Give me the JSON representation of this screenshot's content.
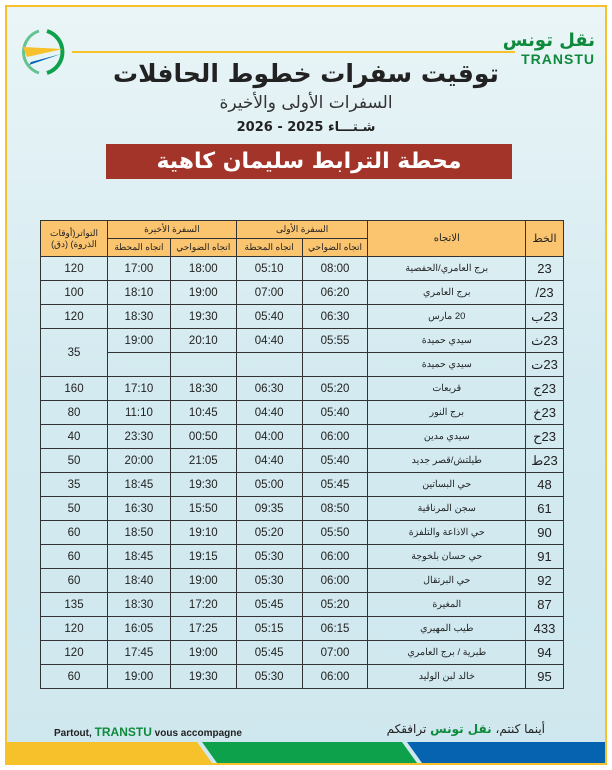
{
  "brand": {
    "arabic": "نقل تونس",
    "latin": "TRANSTU"
  },
  "header": {
    "title": "توقيت سفرات خطوط الحافلات",
    "subtitle": "السفرات الأولى والأخيرة",
    "season": "شـتـــاء 2025 - 2026",
    "station": "محطة الترابط سليمان كاهية"
  },
  "table": {
    "headers": {
      "line": "الخط",
      "direction": "الاتجاه",
      "first_trip": "السفرة الأولى",
      "last_trip": "السفرة الأخيرة",
      "frequency": "التواتر(أوقات الذروة) (دق)",
      "to_suburbs": "اتجاه الضواحي",
      "to_station": "اتجاه المحطة"
    },
    "rows": [
      {
        "line": "23",
        "direction": "برج العامري/الحفصية",
        "first_suburbs": "08:00",
        "first_station": "05:10",
        "last_suburbs": "18:00",
        "last_station": "17:00",
        "freq": "120"
      },
      {
        "line": "23/",
        "direction": "برج العامري",
        "first_suburbs": "06:20",
        "first_station": "07:00",
        "last_suburbs": "19:00",
        "last_station": "18:10",
        "freq": "100"
      },
      {
        "line": "23ب",
        "direction": "20 مارس",
        "first_suburbs": "06:30",
        "first_station": "05:40",
        "last_suburbs": "19:30",
        "last_station": "18:30",
        "freq": "120"
      },
      {
        "line": "23ث",
        "direction": "سيدي حميدة",
        "first_suburbs": "05:55",
        "first_station": "04:40",
        "last_suburbs": "20:10",
        "last_station": "19:00",
        "freq": "35"
      },
      {
        "line": "23ت",
        "direction": "سيدي حميدة",
        "first_suburbs": "",
        "first_station": "",
        "last_suburbs": "",
        "last_station": "",
        "freq": ""
      },
      {
        "line": "23ج",
        "direction": "قربعات",
        "first_suburbs": "05:20",
        "first_station": "06:30",
        "last_suburbs": "18:30",
        "last_station": "17:10",
        "freq": "160"
      },
      {
        "line": "23خ",
        "direction": "برج النور",
        "first_suburbs": "05:40",
        "first_station": "04:40",
        "last_suburbs": "10:45",
        "last_station": "11:10",
        "freq": "80"
      },
      {
        "line": "23ح",
        "direction": "سيدي مدين",
        "first_suburbs": "06:00",
        "first_station": "04:00",
        "last_suburbs": "00:50",
        "last_station": "23:30",
        "freq": "40"
      },
      {
        "line": "23ط",
        "direction": "طيلتش/قصر جديد",
        "first_suburbs": "05:40",
        "first_station": "04:40",
        "last_suburbs": "21:05",
        "last_station": "20:00",
        "freq": "50"
      },
      {
        "line": "48",
        "direction": "حي البساتين",
        "first_suburbs": "05:45",
        "first_station": "05:00",
        "last_suburbs": "19:30",
        "last_station": "18:45",
        "freq": "35"
      },
      {
        "line": "61",
        "direction": "سجن المرناقية",
        "first_suburbs": "08:50",
        "first_station": "09:35",
        "last_suburbs": "15:50",
        "last_station": "16:30",
        "freq": "50"
      },
      {
        "line": "90",
        "direction": "حي الاذاعة والتلفزة",
        "first_suburbs": "05:50",
        "first_station": "05:20",
        "last_suburbs": "19:10",
        "last_station": "18:50",
        "freq": "60"
      },
      {
        "line": "91",
        "direction": "حي حسان بلخوجة",
        "first_suburbs": "06:00",
        "first_station": "05:30",
        "last_suburbs": "19:15",
        "last_station": "18:45",
        "freq": "60"
      },
      {
        "line": "92",
        "direction": "حي البرتقال",
        "first_suburbs": "06:00",
        "first_station": "05:30",
        "last_suburbs": "19:00",
        "last_station": "18:40",
        "freq": "60"
      },
      {
        "line": "87",
        "direction": "المغيرة",
        "first_suburbs": "05:20",
        "first_station": "05:45",
        "last_suburbs": "17:20",
        "last_station": "18:30",
        "freq": "135"
      },
      {
        "line": "433",
        "direction": "طيب المهيري",
        "first_suburbs": "06:15",
        "first_station": "05:15",
        "last_suburbs": "17:25",
        "last_station": "16:05",
        "freq": "120"
      },
      {
        "line": "94",
        "direction": "طبرية / برج العامري",
        "first_suburbs": "07:00",
        "first_station": "05:45",
        "last_suburbs": "19:00",
        "last_station": "17:45",
        "freq": "120"
      },
      {
        "line": "95",
        "direction": "خالد لبن الوليد",
        "first_suburbs": "06:00",
        "first_station": "05:30",
        "last_suburbs": "19:30",
        "last_station": "19:00",
        "freq": "60"
      }
    ]
  },
  "footer": {
    "fr_before": "Partout, ",
    "fr_brand": "TRANSTU",
    "fr_after": " vous accompagne",
    "ar_before": "أينما كنتم، ",
    "ar_brand": "نقل تونس",
    "ar_after": " ترافقكم"
  },
  "colors": {
    "yellow": "#f6c12a",
    "green": "#0ea14b",
    "blue": "#0563b0",
    "banner": "#a3342a",
    "header_cell": "#fbc570"
  }
}
